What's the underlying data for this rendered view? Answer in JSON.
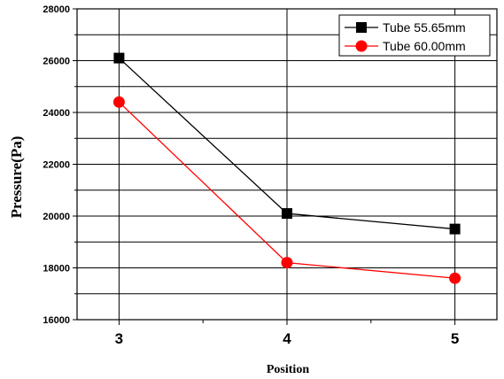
{
  "chart_data": {
    "type": "line",
    "xlabel": "Position",
    "ylabel": "Pressure(Pa)",
    "categories": [
      3,
      4,
      5
    ],
    "xlim": [
      2.75,
      5.25
    ],
    "ylim": [
      16000,
      28000
    ],
    "y_ticks": [
      16000,
      18000,
      20000,
      22000,
      24000,
      26000,
      28000
    ],
    "grid": true,
    "legend_position": "top-right",
    "series": [
      {
        "name": "Tube 55.65mm",
        "values": [
          26100,
          20100,
          19500
        ],
        "color": "#000000",
        "marker": "square"
      },
      {
        "name": "Tube 60.00mm",
        "values": [
          24400,
          18200,
          17600
        ],
        "color": "#ff0000",
        "marker": "circle"
      }
    ]
  }
}
